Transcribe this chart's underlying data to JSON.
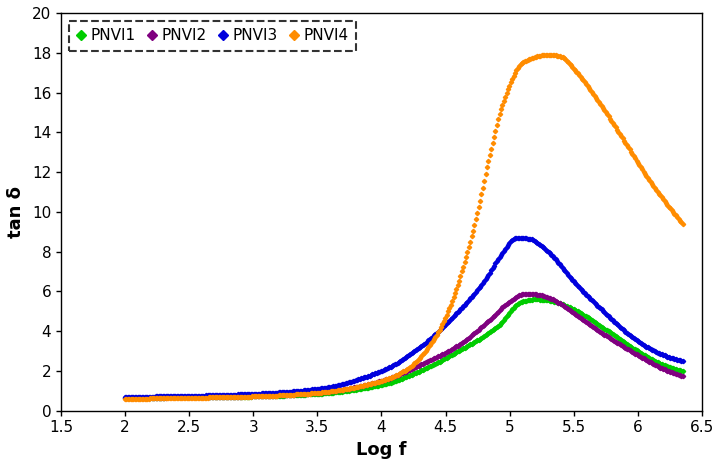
{
  "title": "",
  "xlabel": "Log f",
  "ylabel": "tan δ",
  "xlim": [
    1.5,
    6.5
  ],
  "ylim": [
    0,
    20
  ],
  "xticks": [
    1.5,
    2.0,
    2.5,
    3.0,
    3.5,
    4.0,
    4.5,
    5.0,
    5.5,
    6.0,
    6.5
  ],
  "yticks": [
    0,
    2,
    4,
    6,
    8,
    10,
    12,
    14,
    16,
    18,
    20
  ],
  "series": [
    {
      "name": "PNVI1",
      "color": "#00cc00",
      "keypoints": [
        [
          2.0,
          0.65
        ],
        [
          2.5,
          0.68
        ],
        [
          3.0,
          0.72
        ],
        [
          3.5,
          0.85
        ],
        [
          4.0,
          1.3
        ],
        [
          4.3,
          2.0
        ],
        [
          4.6,
          3.0
        ],
        [
          4.9,
          4.2
        ],
        [
          5.1,
          5.5
        ],
        [
          5.2,
          5.6
        ],
        [
          5.3,
          5.55
        ],
        [
          5.5,
          5.1
        ],
        [
          5.7,
          4.3
        ],
        [
          6.0,
          3.0
        ],
        [
          6.2,
          2.3
        ],
        [
          6.35,
          2.0
        ]
      ]
    },
    {
      "name": "PNVI2",
      "color": "#800080",
      "keypoints": [
        [
          2.0,
          0.65
        ],
        [
          2.5,
          0.68
        ],
        [
          3.0,
          0.73
        ],
        [
          3.5,
          0.9
        ],
        [
          4.0,
          1.5
        ],
        [
          4.3,
          2.3
        ],
        [
          4.6,
          3.3
        ],
        [
          4.85,
          4.6
        ],
        [
          5.0,
          5.5
        ],
        [
          5.1,
          5.85
        ],
        [
          5.2,
          5.85
        ],
        [
          5.3,
          5.7
        ],
        [
          5.5,
          4.9
        ],
        [
          5.7,
          4.0
        ],
        [
          6.0,
          2.8
        ],
        [
          6.2,
          2.1
        ],
        [
          6.35,
          1.75
        ]
      ]
    },
    {
      "name": "PNVI3",
      "color": "#0000dd",
      "keypoints": [
        [
          2.0,
          0.7
        ],
        [
          2.5,
          0.75
        ],
        [
          3.0,
          0.85
        ],
        [
          3.5,
          1.1
        ],
        [
          4.0,
          2.0
        ],
        [
          4.3,
          3.2
        ],
        [
          4.6,
          5.0
        ],
        [
          4.8,
          6.5
        ],
        [
          4.95,
          8.0
        ],
        [
          5.05,
          8.7
        ],
        [
          5.15,
          8.65
        ],
        [
          5.3,
          8.0
        ],
        [
          5.5,
          6.5
        ],
        [
          5.7,
          5.2
        ],
        [
          6.0,
          3.5
        ],
        [
          6.2,
          2.8
        ],
        [
          6.35,
          2.5
        ]
      ]
    },
    {
      "name": "PNVI4",
      "color": "#ff8c00",
      "keypoints": [
        [
          2.0,
          0.6
        ],
        [
          2.5,
          0.65
        ],
        [
          3.0,
          0.72
        ],
        [
          3.5,
          0.9
        ],
        [
          4.0,
          1.5
        ],
        [
          4.2,
          2.1
        ],
        [
          4.4,
          3.5
        ],
        [
          4.55,
          5.5
        ],
        [
          4.65,
          7.5
        ],
        [
          4.75,
          10.0
        ],
        [
          4.85,
          13.0
        ],
        [
          4.95,
          15.5
        ],
        [
          5.1,
          17.5
        ],
        [
          5.3,
          17.9
        ],
        [
          5.4,
          17.8
        ],
        [
          5.5,
          17.2
        ],
        [
          5.7,
          15.5
        ],
        [
          5.9,
          13.5
        ],
        [
          6.1,
          11.5
        ],
        [
          6.35,
          9.4
        ]
      ]
    }
  ],
  "marker": "D",
  "markersize": 2.2,
  "linewidth": 0
}
